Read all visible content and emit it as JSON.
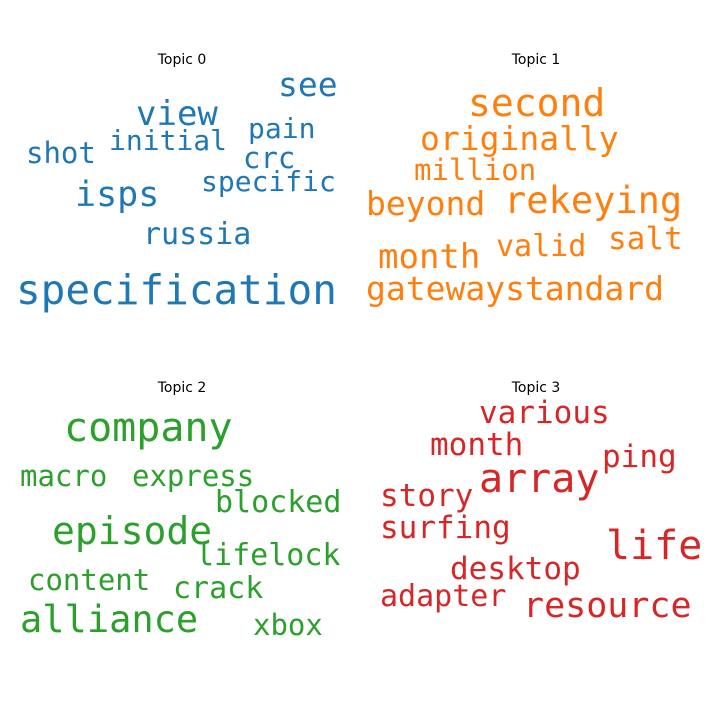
{
  "chart_data": {
    "type": "wordcloud",
    "panels": [
      {
        "title": "Topic 0",
        "color": "#1f77b4",
        "words": [
          "specification",
          "isps",
          "see",
          "view",
          "russia",
          "pain",
          "crc",
          "specific",
          "initial",
          "shot"
        ]
      },
      {
        "title": "Topic 1",
        "color": "#ff7f0e",
        "words": [
          "second",
          "rekeying",
          "originally",
          "gatewaystandard",
          "beyond",
          "month",
          "million",
          "salt",
          "valid"
        ]
      },
      {
        "title": "Topic 2",
        "color": "#2ca02c",
        "words": [
          "company",
          "episode",
          "alliance",
          "macro",
          "express",
          "blocked",
          "lifelock",
          "content",
          "crack",
          "xbox"
        ]
      },
      {
        "title": "Topic 3",
        "color": "#d62728",
        "words": [
          "array",
          "life",
          "resource",
          "various",
          "month",
          "ping",
          "story",
          "surfing",
          "desktop",
          "adapter"
        ]
      }
    ]
  }
}
